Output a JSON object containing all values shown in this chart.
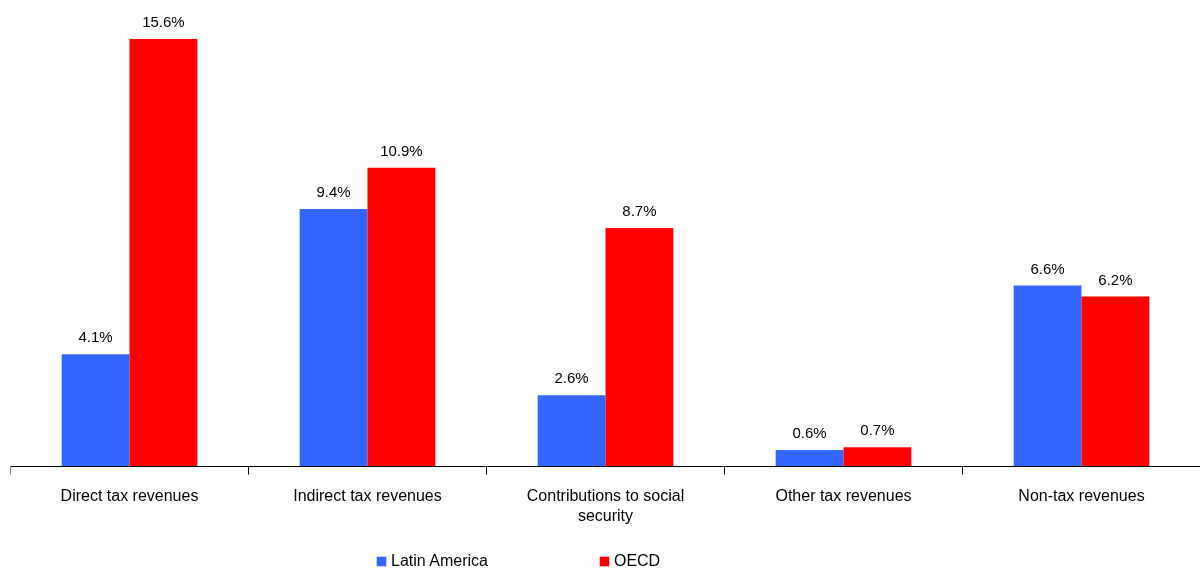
{
  "chart_data": {
    "type": "bar",
    "categories": [
      "Direct tax revenues",
      "Indirect tax revenues",
      "Contributions to social security",
      "Other tax revenues",
      "Non-tax revenues"
    ],
    "series": [
      {
        "name": "Latin America",
        "color": "#3366ff",
        "values": [
          4.1,
          9.4,
          2.6,
          0.6,
          6.6
        ],
        "value_labels": [
          "4.1%",
          "9.4%",
          "2.6%",
          "0.6%",
          "6.6%"
        ]
      },
      {
        "name": "OECD",
        "color": "#ff0000",
        "values": [
          15.6,
          10.9,
          8.7,
          0.7,
          6.2
        ],
        "value_labels": [
          "15.6%",
          "10.9%",
          "8.7%",
          "0.7%",
          "6.2%"
        ]
      }
    ],
    "legend": "bottom"
  }
}
